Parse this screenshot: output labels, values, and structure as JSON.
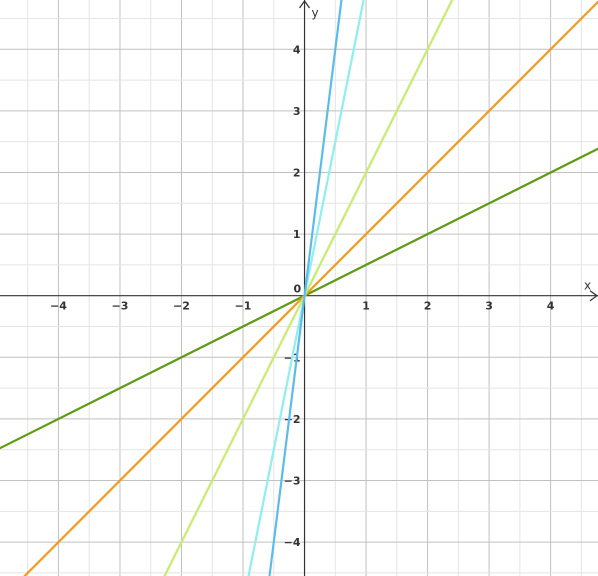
{
  "chart_data": {
    "type": "line",
    "title": "",
    "xlabel": "x",
    "ylabel": "y",
    "xlim": [
      -4.95,
      4.77
    ],
    "ylim": [
      -4.55,
      4.8
    ],
    "grid": true,
    "x_ticks": [
      -4,
      -3,
      -2,
      -1,
      0,
      1,
      2,
      3,
      4
    ],
    "y_ticks": [
      -4,
      -3,
      -2,
      -1,
      1,
      2,
      3,
      4
    ],
    "x_tick_labels": [
      "−4",
      "−3",
      "−2",
      "−1",
      "0",
      "1",
      "2",
      "3",
      "4"
    ],
    "y_tick_labels": [
      "−4",
      "−3",
      "−2",
      "−1",
      "1",
      "2",
      "3",
      "4"
    ],
    "origin_label": "0",
    "series": [
      {
        "slope": 0.5,
        "color": "#5d9b13",
        "points": [
          [
            -4.95,
            -2.475
          ],
          [
            4.77,
            2.385
          ]
        ]
      },
      {
        "slope": 1,
        "color": "#f39a1e",
        "points": [
          [
            -4.55,
            -4.55
          ],
          [
            4.77,
            4.77
          ]
        ]
      },
      {
        "slope": 2,
        "color": "#c7ec6d",
        "points": [
          [
            -2.275,
            -4.55
          ],
          [
            2.4,
            4.8
          ]
        ]
      },
      {
        "slope": 5,
        "color": "#8fefee",
        "points": [
          [
            -0.91,
            -4.55
          ],
          [
            0.96,
            4.8
          ]
        ]
      },
      {
        "slope": 8,
        "color": "#5bbcec",
        "points": [
          [
            -0.569,
            -4.55
          ],
          [
            0.6,
            4.8
          ]
        ]
      }
    ]
  }
}
